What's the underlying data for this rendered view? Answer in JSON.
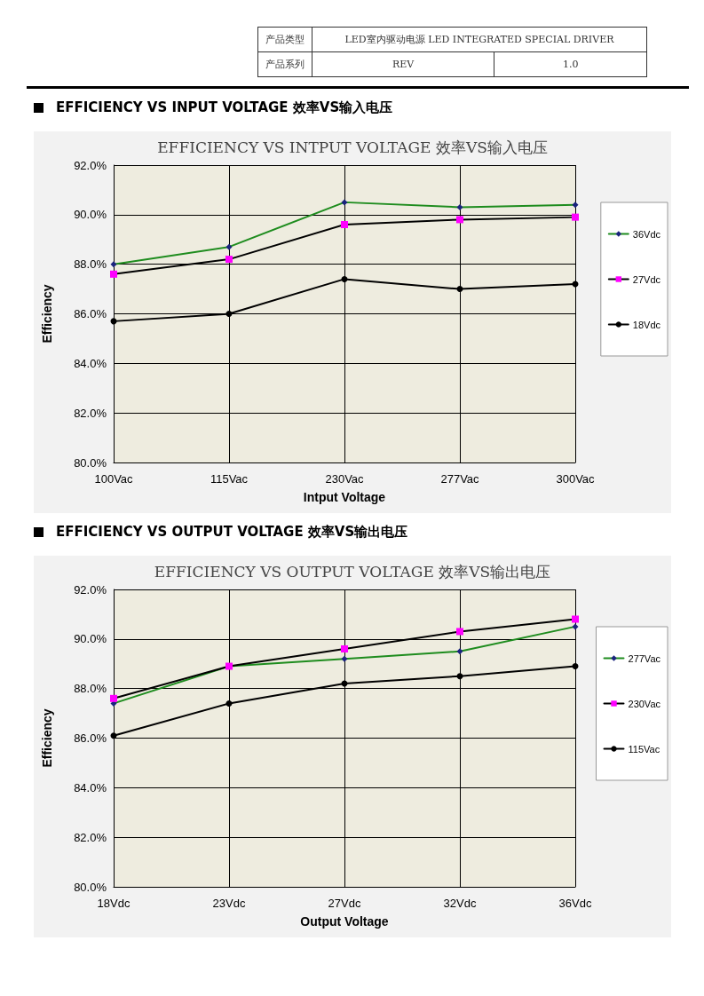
{
  "chart_data": [
    {
      "type": "line",
      "title": "EFFICIENCY VS INTPUT VOLTAGE 效率VS输入电压",
      "subtitle": "EFFICIENCY VS INPUT VOLTAGE 效率VS输入电压",
      "xlabel": "Intput Voltage",
      "ylabel": "Efficiency",
      "annotations": [
        "产品类型",
        "LED室内驱动电源   LED INTEGRATED SPECIAL DRIVER",
        "产品系列",
        "REV",
        "1.0"
      ],
      "categories": [
        "100Vac",
        "115Vac",
        "230Vac",
        "277Vac",
        "300Vac"
      ],
      "series": [
        {
          "name": "36Vdc",
          "color": "#1e8c1e",
          "marker": "diamond",
          "colors": [
            "#1a237e",
            "#1a237e",
            "#1a237e",
            "#1a237e",
            "#1a237e"
          ],
          "values": [
            88.0,
            88.7,
            90.5,
            90.3,
            90.4
          ]
        },
        {
          "name": "27Vdc",
          "color": "#000000",
          "marker": "square",
          "colors": [
            "#ff00ff",
            "#ff00ff",
            "#ff00ff",
            "#ff00ff",
            "#ff00ff"
          ],
          "values": [
            87.6,
            88.2,
            89.6,
            89.8,
            89.9
          ]
        },
        {
          "name": "18Vdc",
          "color": "#000000",
          "marker": "circle",
          "colors": [
            "#000000",
            "#000000",
            "#000000",
            "#000000",
            "#000000"
          ],
          "values": [
            85.7,
            86.0,
            87.4,
            87.0,
            87.2
          ]
        }
      ],
      "ylim": [
        80,
        92
      ],
      "yticks": [
        {
          "value": 80,
          "label": "80.0%"
        },
        {
          "value": 82,
          "label": "82.0%"
        },
        {
          "value": 84,
          "label": "84.0%"
        },
        {
          "value": 86,
          "label": "86.0%"
        },
        {
          "value": 88,
          "label": "88.0%"
        },
        {
          "value": 90,
          "label": "90.0%"
        },
        {
          "value": 92,
          "label": "92.0%"
        }
      ],
      "grid": true,
      "legend": "right"
    },
    {
      "type": "line",
      "title": "EFFICIENCY VS OUTPUT VOLTAGE 效率VS输出电压",
      "subtitle": "EFFICIENCY VS OUTPUT VOLTAGE 效率VS输出电压",
      "xlabel": "Output Voltage",
      "ylabel": "Efficiency",
      "categories": [
        "18Vdc",
        "23Vdc",
        "27Vdc",
        "32Vdc",
        "36Vdc"
      ],
      "series": [
        {
          "name": "277Vac",
          "color": "#1e8c1e",
          "marker": "diamond",
          "colors": [
            "#1a237e",
            "#1a237e",
            "#1a237e",
            "#1a237e",
            "#1a237e"
          ],
          "values": [
            87.4,
            88.9,
            89.2,
            89.5,
            90.5
          ]
        },
        {
          "name": "230Vac",
          "color": "#000000",
          "marker": "square",
          "colors": [
            "#ff00ff",
            "#ff00ff",
            "#ff00ff",
            "#ff00ff",
            "#ff00ff"
          ],
          "values": [
            87.6,
            88.9,
            89.6,
            90.3,
            90.8
          ]
        },
        {
          "name": "115Vac",
          "color": "#000000",
          "marker": "circle",
          "colors": [
            "#000000",
            "#000000",
            "#000000",
            "#000000",
            "#000000"
          ],
          "values": [
            86.1,
            87.4,
            88.2,
            88.5,
            88.9
          ]
        }
      ],
      "ylim": [
        80,
        92
      ],
      "yticks": [
        {
          "value": 80,
          "label": "80.0%"
        },
        {
          "value": 82,
          "label": "82.0%"
        },
        {
          "value": 84,
          "label": "84.0%"
        },
        {
          "value": 86,
          "label": "86.0%"
        },
        {
          "value": 88,
          "label": "88.0%"
        },
        {
          "value": 90,
          "label": "90.0%"
        },
        {
          "value": 92,
          "label": "92.0%"
        }
      ],
      "grid": true,
      "legend": "right"
    }
  ]
}
